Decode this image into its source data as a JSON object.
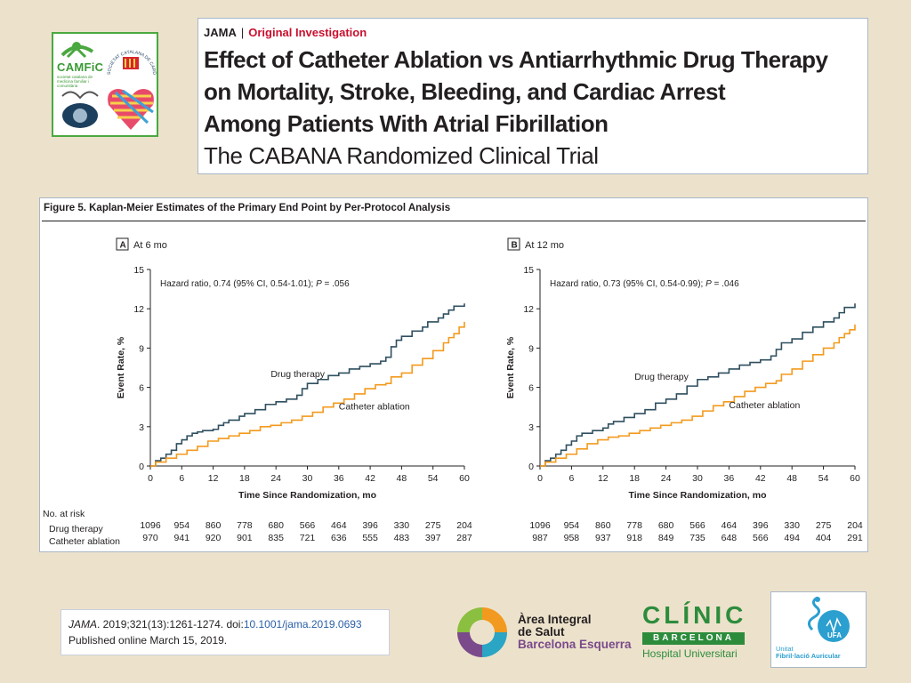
{
  "camfic_logo": {
    "name": "CAMFiC",
    "subtitle": "societat catalana de medicina familiar i comunitària",
    "arc_text": "SOCIETAT CATALANA DE CARDIOLOGIA"
  },
  "article": {
    "journal": "JAMA",
    "separator": "|",
    "section": "Original Investigation",
    "title_lines": [
      "Effect of Catheter Ablation vs Antiarrhythmic Drug Therapy",
      "on Mortality, Stroke, Bleeding, and Cardiac Arrest",
      "Among Patients With Atrial Fibrillation"
    ],
    "subtitle": "The CABANA Randomized Clinical Trial"
  },
  "figure": {
    "caption": "Figure 5. Kaplan-Meier Estimates of the Primary End Point by Per-Protocol Analysis",
    "risk_header": "No. at risk",
    "risk_rows": [
      "Drug therapy",
      "Catheter ablation"
    ]
  },
  "chart_data": [
    {
      "type": "line",
      "panel_letter": "A",
      "panel_title": "At 6 mo",
      "hazard_text_pre": "Hazard ratio, 0.74 (95% CI, 0.54-1.01); ",
      "hazard_p_label": "P",
      "hazard_text_post": " = .056",
      "xlabel": "Time Since Randomization, mo",
      "ylabel": "Event Rate, %",
      "xlim": [
        0,
        60
      ],
      "ylim": [
        0,
        15
      ],
      "xticks": [
        0,
        6,
        12,
        18,
        24,
        30,
        36,
        42,
        48,
        54,
        60
      ],
      "yticks": [
        0,
        3,
        6,
        9,
        12,
        15
      ],
      "series": [
        {
          "name": "Drug therapy",
          "color": "#2f4f5f",
          "points": [
            [
              0,
              0
            ],
            [
              1,
              0.4
            ],
            [
              2,
              0.6
            ],
            [
              3,
              0.9
            ],
            [
              4,
              1.2
            ],
            [
              5,
              1.7
            ],
            [
              6,
              2.0
            ],
            [
              7,
              2.3
            ],
            [
              8,
              2.5
            ],
            [
              9,
              2.6
            ],
            [
              10,
              2.7
            ],
            [
              12,
              2.8
            ],
            [
              13,
              3.1
            ],
            [
              14,
              3.3
            ],
            [
              15,
              3.5
            ],
            [
              17,
              3.8
            ],
            [
              18,
              4.0
            ],
            [
              20,
              4.3
            ],
            [
              22,
              4.7
            ],
            [
              24,
              4.9
            ],
            [
              26,
              5.1
            ],
            [
              28,
              5.4
            ],
            [
              29,
              5.9
            ],
            [
              30,
              6.3
            ],
            [
              32,
              6.6
            ],
            [
              34,
              6.9
            ],
            [
              36,
              7.1
            ],
            [
              38,
              7.4
            ],
            [
              40,
              7.6
            ],
            [
              42,
              7.8
            ],
            [
              44,
              8.0
            ],
            [
              45,
              8.3
            ],
            [
              46,
              9.1
            ],
            [
              47,
              9.6
            ],
            [
              48,
              9.9
            ],
            [
              50,
              10.3
            ],
            [
              52,
              10.6
            ],
            [
              53,
              11.0
            ],
            [
              55,
              11.3
            ],
            [
              56,
              11.6
            ],
            [
              57,
              11.9
            ],
            [
              58,
              12.2
            ],
            [
              60,
              12.4
            ]
          ],
          "end_x": 60
        },
        {
          "name": "Catheter ablation",
          "color": "#f39a1d",
          "points": [
            [
              0,
              0
            ],
            [
              1,
              0.3
            ],
            [
              3,
              0.6
            ],
            [
              5,
              0.9
            ],
            [
              7,
              1.2
            ],
            [
              9,
              1.5
            ],
            [
              11,
              1.9
            ],
            [
              13,
              2.1
            ],
            [
              15,
              2.3
            ],
            [
              17,
              2.5
            ],
            [
              19,
              2.7
            ],
            [
              21,
              3.0
            ],
            [
              23,
              3.1
            ],
            [
              25,
              3.3
            ],
            [
              27,
              3.5
            ],
            [
              29,
              3.8
            ],
            [
              31,
              4.1
            ],
            [
              33,
              4.5
            ],
            [
              35,
              4.8
            ],
            [
              37,
              5.1
            ],
            [
              39,
              5.5
            ],
            [
              41,
              5.9
            ],
            [
              43,
              6.2
            ],
            [
              45,
              6.3
            ],
            [
              46,
              6.8
            ],
            [
              48,
              7.1
            ],
            [
              50,
              7.7
            ],
            [
              52,
              8.2
            ],
            [
              54,
              8.8
            ],
            [
              56,
              9.4
            ],
            [
              57,
              9.8
            ],
            [
              58,
              10.1
            ],
            [
              59,
              10.6
            ],
            [
              60,
              11.0
            ]
          ],
          "end_x": 60
        }
      ],
      "series_labels": [
        {
          "text": "Drug therapy",
          "x": 23,
          "y": 6.8
        },
        {
          "text": "Catheter ablation",
          "x": 36,
          "y": 4.3
        }
      ],
      "risk_table": {
        "times": [
          0,
          6,
          12,
          18,
          24,
          30,
          36,
          42,
          48,
          54,
          60
        ],
        "drug_therapy": [
          "1096",
          "954",
          "860",
          "778",
          "680",
          "566",
          "464",
          "396",
          "330",
          "275",
          "204"
        ],
        "catheter_ablation": [
          "970",
          "941",
          "920",
          "901",
          "835",
          "721",
          "636",
          "555",
          "483",
          "397",
          "287"
        ]
      }
    },
    {
      "type": "line",
      "panel_letter": "B",
      "panel_title": "At 12 mo",
      "hazard_text_pre": "Hazard ratio, 0.73 (95% CI, 0.54-0.99); ",
      "hazard_p_label": "P",
      "hazard_text_post": " = .046",
      "xlabel": "Time Since Randomization, mo",
      "ylabel": "Event Rate, %",
      "xlim": [
        0,
        60
      ],
      "ylim": [
        0,
        15
      ],
      "xticks": [
        0,
        6,
        12,
        18,
        24,
        30,
        36,
        42,
        48,
        54,
        60
      ],
      "yticks": [
        0,
        3,
        6,
        9,
        12,
        15
      ],
      "series": [
        {
          "name": "Drug therapy",
          "color": "#2f4f5f",
          "points": [
            [
              0,
              0
            ],
            [
              1,
              0.4
            ],
            [
              2,
              0.6
            ],
            [
              3,
              0.9
            ],
            [
              4,
              1.2
            ],
            [
              5,
              1.6
            ],
            [
              6,
              1.9
            ],
            [
              7,
              2.3
            ],
            [
              8,
              2.5
            ],
            [
              10,
              2.7
            ],
            [
              12,
              2.9
            ],
            [
              13,
              3.2
            ],
            [
              14,
              3.4
            ],
            [
              16,
              3.7
            ],
            [
              18,
              4.0
            ],
            [
              20,
              4.3
            ],
            [
              22,
              4.8
            ],
            [
              24,
              5.1
            ],
            [
              26,
              5.5
            ],
            [
              28,
              6.1
            ],
            [
              30,
              6.6
            ],
            [
              32,
              6.8
            ],
            [
              34,
              7.1
            ],
            [
              36,
              7.4
            ],
            [
              38,
              7.7
            ],
            [
              40,
              7.9
            ],
            [
              42,
              8.1
            ],
            [
              44,
              8.4
            ],
            [
              45,
              8.9
            ],
            [
              46,
              9.4
            ],
            [
              48,
              9.7
            ],
            [
              50,
              10.2
            ],
            [
              52,
              10.6
            ],
            [
              54,
              11.0
            ],
            [
              56,
              11.3
            ],
            [
              57,
              11.7
            ],
            [
              58,
              12.1
            ],
            [
              60,
              12.4
            ]
          ],
          "end_x": 60
        },
        {
          "name": "Catheter ablation",
          "color": "#f39a1d",
          "points": [
            [
              0,
              0
            ],
            [
              1,
              0.3
            ],
            [
              3,
              0.6
            ],
            [
              5,
              0.9
            ],
            [
              7,
              1.3
            ],
            [
              9,
              1.7
            ],
            [
              11,
              2.0
            ],
            [
              13,
              2.2
            ],
            [
              15,
              2.3
            ],
            [
              17,
              2.5
            ],
            [
              19,
              2.7
            ],
            [
              21,
              2.9
            ],
            [
              23,
              3.1
            ],
            [
              25,
              3.3
            ],
            [
              27,
              3.5
            ],
            [
              29,
              3.8
            ],
            [
              31,
              4.2
            ],
            [
              33,
              4.6
            ],
            [
              35,
              4.9
            ],
            [
              37,
              5.3
            ],
            [
              39,
              5.7
            ],
            [
              41,
              6.0
            ],
            [
              43,
              6.3
            ],
            [
              45,
              6.5
            ],
            [
              46,
              7.0
            ],
            [
              48,
              7.4
            ],
            [
              50,
              8.0
            ],
            [
              52,
              8.5
            ],
            [
              54,
              9.0
            ],
            [
              56,
              9.4
            ],
            [
              57,
              9.8
            ],
            [
              58,
              10.1
            ],
            [
              59,
              10.4
            ],
            [
              60,
              10.8
            ]
          ],
          "end_x": 60
        }
      ],
      "series_labels": [
        {
          "text": "Drug therapy",
          "x": 18,
          "y": 6.6
        },
        {
          "text": "Catheter ablation",
          "x": 36,
          "y": 4.4
        }
      ],
      "risk_table": {
        "times": [
          0,
          6,
          12,
          18,
          24,
          30,
          36,
          42,
          48,
          54,
          60
        ],
        "drug_therapy": [
          "1096",
          "954",
          "860",
          "778",
          "680",
          "566",
          "464",
          "396",
          "330",
          "275",
          "204"
        ],
        "catheter_ablation": [
          "987",
          "958",
          "937",
          "918",
          "849",
          "735",
          "648",
          "566",
          "494",
          "404",
          "291"
        ]
      }
    }
  ],
  "citation": {
    "journal": "JAMA",
    "ref": ". 2019;321(13):1261-1274. doi:",
    "doi": "10.1001/jama.2019.0693",
    "published": "Published online March 15, 2019."
  },
  "area_logo": {
    "lines": [
      "Àrea Integral",
      "de Salut",
      "Barcelona Esquerra"
    ]
  },
  "clinic_logo": {
    "word": "CLÍNIC",
    "bar": "BARCELONA",
    "hospital": "Hospital Universitari"
  },
  "ufa_logo": {
    "badge": "UFA",
    "line1": "Unitat",
    "line2": "Fibril·lació Auricular"
  }
}
